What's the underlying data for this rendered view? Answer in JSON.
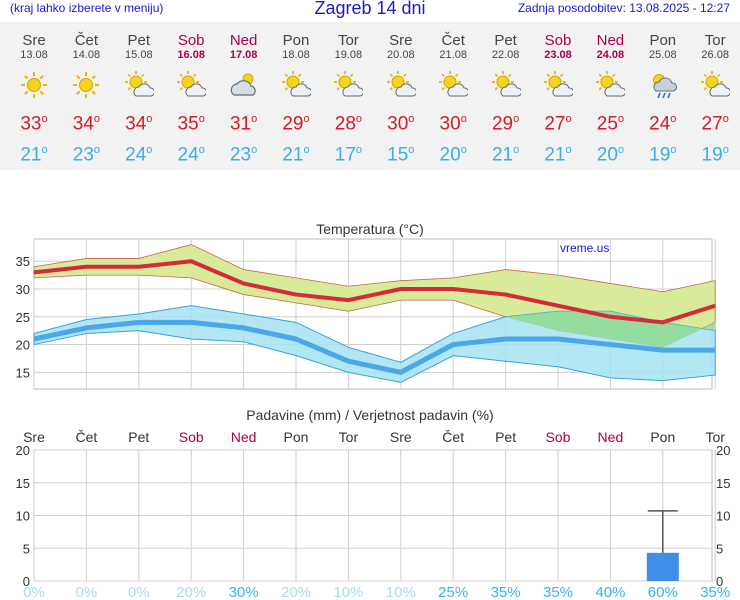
{
  "header": {
    "menu_hint": "(kraj lahko izberete v meniju)",
    "title": "Zagreb 14 dni",
    "updated": "Zadnja posodobitev: 13.08.2025 - 12:27"
  },
  "days": [
    {
      "name": "Sre",
      "date": "13.08",
      "weekend": false,
      "icon": "sun-icon",
      "max": "33",
      "min": "21"
    },
    {
      "name": "Čet",
      "date": "14.08",
      "weekend": false,
      "icon": "sun-icon",
      "max": "34",
      "min": "23"
    },
    {
      "name": "Pet",
      "date": "15.08",
      "weekend": false,
      "icon": "sun-cloud-icon",
      "max": "34",
      "min": "24"
    },
    {
      "name": "Sob",
      "date": "16.08",
      "weekend": true,
      "icon": "sun-cloud-icon",
      "max": "35",
      "min": "24"
    },
    {
      "name": "Ned",
      "date": "17.08",
      "weekend": true,
      "icon": "cloud-sun-icon",
      "max": "31",
      "min": "23"
    },
    {
      "name": "Pon",
      "date": "18.08",
      "weekend": false,
      "icon": "sun-cloud-icon",
      "max": "29",
      "min": "21"
    },
    {
      "name": "Tor",
      "date": "19.08",
      "weekend": false,
      "icon": "sun-cloud-icon",
      "max": "28",
      "min": "17"
    },
    {
      "name": "Sre",
      "date": "20.08",
      "weekend": false,
      "icon": "sun-cloud-icon",
      "max": "30",
      "min": "15"
    },
    {
      "name": "Čet",
      "date": "21.08",
      "weekend": false,
      "icon": "sun-cloud-icon",
      "max": "30",
      "min": "20"
    },
    {
      "name": "Pet",
      "date": "22.08",
      "weekend": false,
      "icon": "sun-cloud-icon",
      "max": "29",
      "min": "21"
    },
    {
      "name": "Sob",
      "date": "23.08",
      "weekend": true,
      "icon": "sun-cloud-icon",
      "max": "27",
      "min": "21"
    },
    {
      "name": "Ned",
      "date": "24.08",
      "weekend": true,
      "icon": "sun-cloud-icon",
      "max": "25",
      "min": "20"
    },
    {
      "name": "Pon",
      "date": "25.08",
      "weekend": false,
      "icon": "rain-cloud-icon",
      "max": "24",
      "min": "19"
    },
    {
      "name": "Tor",
      "date": "26.08",
      "weekend": false,
      "icon": "sun-cloud-icon",
      "max": "27",
      "min": "19"
    }
  ],
  "colors": {
    "max_line": "#d42a3a",
    "min_line": "#4aa8e8",
    "max_band": "#d7eb9a",
    "min_band": "#a6e3f2",
    "overlap_band": "#8fd98d",
    "bar": "#3f8ee8",
    "weekend": "#a8004e",
    "prob_low": "#a6dcf3",
    "prob_high": "#38b2ec"
  },
  "chart_data": [
    {
      "type": "line",
      "title": "Temperatura (°C)",
      "watermark": "vreme.us",
      "ylim": [
        12,
        39
      ],
      "yticks": [
        15,
        20,
        25,
        30,
        35
      ],
      "x": [
        "13.08",
        "14.08",
        "15.08",
        "16.08",
        "17.08",
        "18.08",
        "19.08",
        "20.08",
        "21.08",
        "22.08",
        "23.08",
        "24.08",
        "25.08",
        "26.08"
      ],
      "series": [
        {
          "values": [
            33,
            34,
            34,
            35,
            31,
            29,
            28,
            30,
            30,
            29,
            27,
            25,
            24,
            27
          ],
          "band_high": [
            34,
            35.5,
            35.5,
            38,
            33.5,
            32,
            30.5,
            31.5,
            32,
            33.5,
            32.5,
            31,
            29.5,
            31.5
          ],
          "band_low": [
            32,
            32.5,
            32.5,
            32,
            29,
            27.5,
            26,
            28,
            28,
            25,
            22.5,
            21,
            19.5,
            24
          ]
        },
        {
          "values": [
            21,
            23,
            24,
            24,
            23,
            21,
            17,
            15,
            20,
            21,
            21,
            20,
            19,
            19
          ],
          "band_high": [
            22,
            24.5,
            25.5,
            27,
            25.5,
            24,
            19.5,
            16.8,
            22,
            25,
            26,
            26,
            24,
            22.5
          ],
          "band_low": [
            20,
            22,
            22.5,
            21,
            20.5,
            18,
            15,
            13.2,
            18,
            17,
            16,
            14,
            13.5,
            14.5
          ]
        }
      ]
    },
    {
      "type": "bar",
      "title": "Padavine (mm) / Verjetnost padavin (%)",
      "ylim": [
        0,
        20
      ],
      "yticks": [
        0,
        5,
        10,
        15,
        20
      ],
      "categories": [
        "Sre",
        "Čet",
        "Pet",
        "Sob",
        "Ned",
        "Pon",
        "Tor",
        "Sre",
        "Čet",
        "Pet",
        "Sob",
        "Ned",
        "Pon",
        "Tor"
      ],
      "weekend": [
        false,
        false,
        false,
        true,
        true,
        false,
        false,
        false,
        false,
        false,
        true,
        true,
        false,
        false
      ],
      "values": [
        0,
        0,
        0,
        0,
        0,
        0,
        0,
        0,
        0,
        0,
        0,
        0,
        4.3,
        0
      ],
      "error_high": [
        null,
        null,
        null,
        null,
        null,
        null,
        null,
        null,
        null,
        null,
        null,
        null,
        10.7,
        null
      ],
      "probability": [
        "0%",
        "0%",
        "0%",
        "20%",
        "30%",
        "20%",
        "10%",
        "10%",
        "25%",
        "35%",
        "35%",
        "40%",
        "60%",
        "35%"
      ]
    }
  ]
}
